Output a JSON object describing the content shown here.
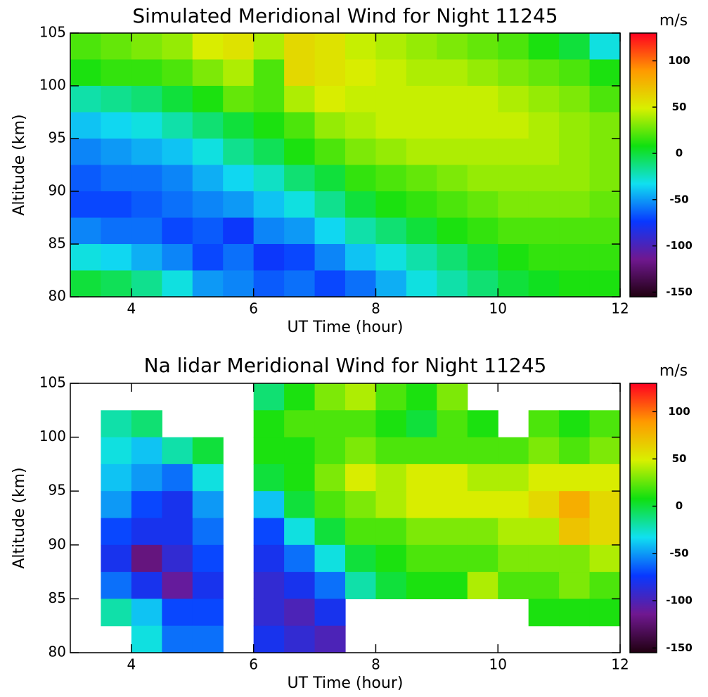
{
  "chart_data": [
    {
      "type": "heatmap",
      "title": "Simulated Meridional Wind for Night 11245",
      "x_label": "UT Time (hour)",
      "y_label": "Altitude (km)",
      "colorbar_label": "m/s",
      "x": [
        3.25,
        3.75,
        4.25,
        4.75,
        5.25,
        5.75,
        6.25,
        6.75,
        7.25,
        7.75,
        8.25,
        8.75,
        9.25,
        9.75,
        10.25,
        10.75,
        11.25,
        11.75
      ],
      "y": [
        103.75,
        101.25,
        98.75,
        96.25,
        93.75,
        91.25,
        88.75,
        86.25,
        83.75,
        81.25
      ],
      "z": [
        [
          20,
          25,
          30,
          35,
          50,
          55,
          40,
          60,
          55,
          45,
          40,
          35,
          30,
          25,
          20,
          10,
          0,
          -30
        ],
        [
          10,
          15,
          15,
          20,
          30,
          40,
          20,
          60,
          55,
          50,
          45,
          40,
          40,
          35,
          30,
          25,
          20,
          10
        ],
        [
          -20,
          -15,
          -10,
          0,
          10,
          25,
          20,
          40,
          50,
          45,
          45,
          45,
          45,
          45,
          40,
          35,
          30,
          20
        ],
        [
          -40,
          -35,
          -30,
          -20,
          -10,
          0,
          10,
          20,
          35,
          40,
          45,
          45,
          45,
          45,
          45,
          40,
          35,
          30
        ],
        [
          -55,
          -50,
          -45,
          -40,
          -30,
          -15,
          -5,
          10,
          20,
          30,
          35,
          40,
          40,
          40,
          40,
          40,
          35,
          30
        ],
        [
          -65,
          -60,
          -60,
          -55,
          -45,
          -35,
          -25,
          -10,
          0,
          15,
          20,
          25,
          30,
          35,
          35,
          35,
          35,
          30
        ],
        [
          -70,
          -70,
          -65,
          -60,
          -55,
          -50,
          -40,
          -30,
          -15,
          0,
          10,
          15,
          20,
          25,
          30,
          30,
          30,
          25
        ],
        [
          -55,
          -60,
          -60,
          -70,
          -65,
          -75,
          -55,
          -50,
          -35,
          -20,
          -10,
          0,
          10,
          15,
          20,
          20,
          20,
          20
        ],
        [
          -30,
          -35,
          -45,
          -55,
          -70,
          -60,
          -75,
          -70,
          -55,
          -40,
          -30,
          -20,
          -10,
          0,
          10,
          15,
          15,
          15
        ],
        [
          0,
          -5,
          -15,
          -30,
          -50,
          -55,
          -65,
          -60,
          -70,
          -60,
          -45,
          -30,
          -20,
          -10,
          0,
          5,
          10,
          10
        ]
      ],
      "xlim": [
        3,
        12
      ],
      "ylim": [
        80,
        105
      ],
      "xticks": [
        4,
        6,
        8,
        10,
        12
      ],
      "yticks": [
        80,
        85,
        90,
        95,
        100,
        105
      ],
      "zlim": [
        -155,
        130
      ],
      "zticks": [
        -150,
        -100,
        -50,
        0,
        50,
        100
      ],
      "colormap": [
        "#200010",
        "#701890",
        "#0838ff",
        "#10e0f0",
        "#10e010",
        "#d8f000",
        "#ff9a00",
        "#ff0020"
      ]
    },
    {
      "type": "heatmap",
      "title": "Na lidar Meridional Wind for Night 11245",
      "x_label": "UT Time (hour)",
      "y_label": "Altitude (km)",
      "colorbar_label": "m/s",
      "x": [
        3.25,
        3.75,
        4.25,
        4.75,
        5.25,
        5.75,
        6.25,
        6.75,
        7.25,
        7.75,
        8.25,
        8.75,
        9.25,
        9.75,
        10.25,
        10.75,
        11.25,
        11.75
      ],
      "y": [
        103.75,
        101.25,
        98.75,
        96.25,
        93.75,
        91.25,
        88.75,
        86.25,
        83.75,
        81.25
      ],
      "z": [
        [
          null,
          null,
          null,
          null,
          null,
          null,
          -10,
          10,
          30,
          40,
          20,
          10,
          30,
          null,
          null,
          null,
          null,
          null
        ],
        [
          null,
          -20,
          -10,
          null,
          null,
          null,
          10,
          20,
          20,
          20,
          10,
          0,
          20,
          10,
          null,
          20,
          10,
          20
        ],
        [
          null,
          -30,
          -40,
          -20,
          0,
          null,
          10,
          10,
          20,
          30,
          20,
          20,
          20,
          20,
          20,
          30,
          20,
          30
        ],
        [
          null,
          -40,
          -50,
          -60,
          -30,
          null,
          0,
          10,
          30,
          50,
          40,
          50,
          50,
          40,
          40,
          50,
          50,
          50
        ],
        [
          null,
          -50,
          -70,
          -80,
          -50,
          null,
          -40,
          0,
          20,
          30,
          40,
          50,
          50,
          50,
          50,
          60,
          80,
          60
        ],
        [
          null,
          -70,
          -80,
          -80,
          -60,
          null,
          -70,
          -30,
          0,
          20,
          20,
          30,
          30,
          30,
          40,
          40,
          70,
          60
        ],
        [
          null,
          -80,
          -120,
          -90,
          -70,
          null,
          -80,
          -60,
          -30,
          0,
          10,
          20,
          20,
          20,
          30,
          30,
          30,
          40
        ],
        [
          null,
          -60,
          -80,
          -110,
          -80,
          null,
          -90,
          -80,
          -60,
          -20,
          0,
          10,
          10,
          40,
          20,
          20,
          30,
          20
        ],
        [
          null,
          -20,
          -40,
          -70,
          -70,
          null,
          -90,
          -100,
          -80,
          null,
          null,
          null,
          null,
          null,
          null,
          10,
          10,
          10
        ],
        [
          null,
          null,
          -30,
          -60,
          -60,
          null,
          -80,
          -90,
          -100,
          null,
          null,
          null,
          null,
          null,
          null,
          null,
          null,
          null
        ]
      ],
      "xlim": [
        3,
        12
      ],
      "ylim": [
        80,
        105
      ],
      "xticks": [
        4,
        6,
        8,
        10,
        12
      ],
      "yticks": [
        80,
        85,
        90,
        95,
        100,
        105
      ],
      "zlim": [
        -155,
        130
      ],
      "zticks": [
        -150,
        -100,
        -50,
        0,
        50,
        100
      ],
      "colormap": [
        "#200010",
        "#701890",
        "#0838ff",
        "#10e0f0",
        "#10e010",
        "#d8f000",
        "#ff9a00",
        "#ff0020"
      ]
    }
  ]
}
